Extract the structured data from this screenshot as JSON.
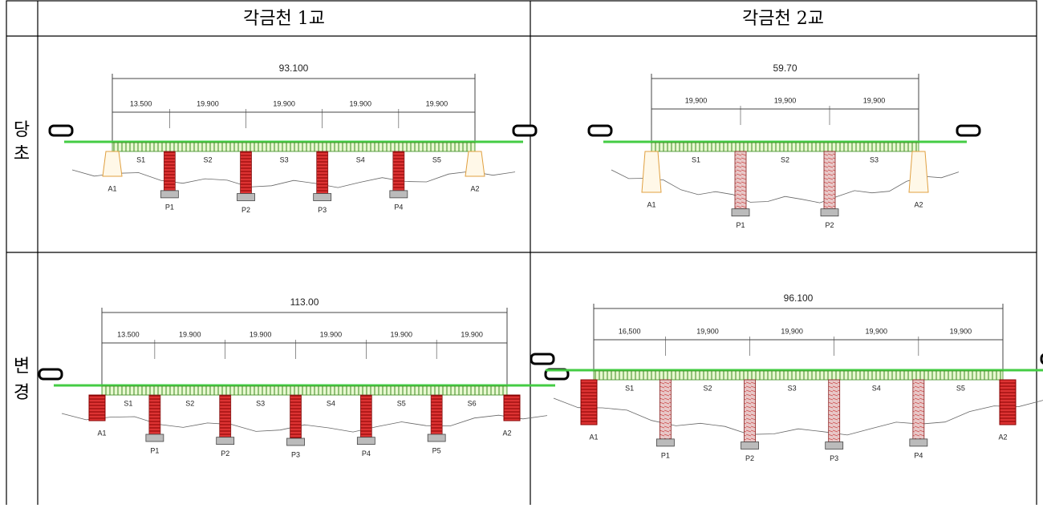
{
  "table": {
    "headers": [
      "각금천 1교",
      "각금천 2교"
    ],
    "rows": [
      {
        "label": [
          "당",
          "초"
        ],
        "cells": [
          {
            "total": "93.100",
            "spans": [
              "13.500",
              "19.900",
              "19.900",
              "19.900",
              "19.900"
            ],
            "span_names": [
              "S1",
              "S2",
              "S3",
              "S4",
              "S5"
            ],
            "supports": [
              "A1",
              "P1",
              "P2",
              "P3",
              "P4",
              "A2"
            ]
          },
          {
            "total": "59.70",
            "spans": [
              "19,900",
              "19,900",
              "19,900"
            ],
            "span_names": [
              "S1",
              "S2",
              "S3"
            ],
            "supports": [
              "A1",
              "P1",
              "P2",
              "A2"
            ]
          }
        ]
      },
      {
        "label": [
          "변",
          "경"
        ],
        "cells": [
          {
            "total": "113.00",
            "spans": [
              "13.500",
              "19.900",
              "19.900",
              "19.900",
              "19.900",
              "19.900"
            ],
            "span_names": [
              "S1",
              "S2",
              "S3",
              "S4",
              "S5",
              "S6"
            ],
            "supports": [
              "A1",
              "P1",
              "P2",
              "P3",
              "P4",
              "P5",
              "A2"
            ]
          },
          {
            "total": "96.100",
            "spans": [
              "16,500",
              "19,900",
              "19,900",
              "19,900",
              "19,900"
            ],
            "span_names": [
              "S1",
              "S2",
              "S3",
              "S4",
              "S5"
            ],
            "supports": [
              "A1",
              "P1",
              "P2",
              "P3",
              "P4",
              "A2"
            ]
          }
        ]
      }
    ]
  }
}
